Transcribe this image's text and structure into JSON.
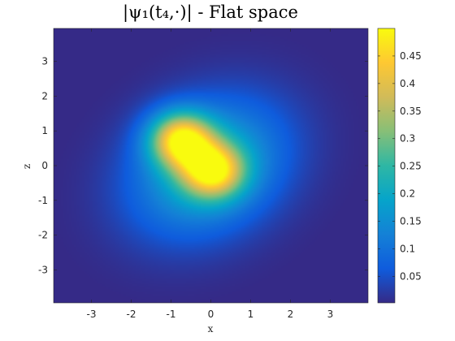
{
  "chart_data": {
    "type": "heatmap",
    "title": "|ψ₁(t₄,·)| - Flat space",
    "xlabel": "x",
    "ylabel": "z",
    "xlim": [
      -3.95,
      3.95
    ],
    "ylim": [
      -3.95,
      3.95
    ],
    "x_ticks": [
      -3,
      -2,
      -1,
      0,
      1,
      2,
      3
    ],
    "x_tick_labels": [
      "-3",
      "-2",
      "-1",
      "0",
      "1",
      "2",
      "3"
    ],
    "y_ticks": [
      3,
      2,
      1,
      0,
      -1,
      -2,
      -3
    ],
    "y_tick_labels": [
      "3",
      "2",
      "1",
      "0",
      "-1",
      "-2",
      "-3"
    ],
    "grid": false,
    "colormap": "parula",
    "colorbar": {
      "range": [
        0.002,
        0.5
      ],
      "ticks": [
        0.05,
        0.1,
        0.15,
        0.2,
        0.25,
        0.3,
        0.35,
        0.4,
        0.45
      ],
      "tick_labels": [
        "0.05",
        "0.1",
        "0.15",
        "0.2",
        "0.25",
        "0.3",
        "0.35",
        "0.4",
        "0.45"
      ]
    },
    "peaks": [
      {
        "x": -0.75,
        "z": 0.75,
        "value": 0.48
      },
      {
        "x": 0.05,
        "z": -0.15,
        "value": 0.43
      }
    ],
    "colors": [
      "#352a87",
      "#0f5cdd",
      "#1481d6",
      "#06a4ca",
      "#2eb7a4",
      "#87bf77",
      "#d1bb59",
      "#fec832",
      "#f9fb0e"
    ]
  }
}
